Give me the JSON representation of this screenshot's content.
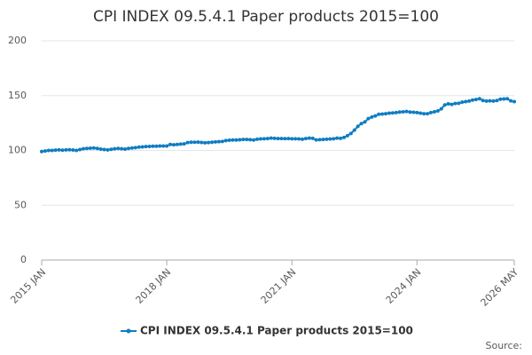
{
  "chart_data": {
    "type": "line",
    "title": "CPI INDEX 09.5.4.1 Paper products 2015=100",
    "source": "Source:",
    "categories": [
      "2015 JAN",
      null,
      null,
      null,
      null,
      null,
      null,
      null,
      null,
      null,
      null,
      null,
      null,
      null,
      null,
      null,
      null,
      null,
      null,
      null,
      null,
      null,
      null,
      null,
      null,
      null,
      null,
      null,
      null,
      null,
      null,
      null,
      null,
      null,
      null,
      null,
      "2018 JAN",
      null,
      null,
      null,
      null,
      null,
      null,
      null,
      null,
      null,
      null,
      null,
      null,
      null,
      null,
      null,
      null,
      null,
      null,
      null,
      null,
      null,
      null,
      null,
      null,
      null,
      null,
      null,
      null,
      null,
      null,
      null,
      null,
      null,
      null,
      null,
      "2021 JAN",
      null,
      null,
      null,
      null,
      null,
      null,
      null,
      null,
      null,
      null,
      null,
      null,
      null,
      null,
      null,
      null,
      null,
      null,
      null,
      null,
      null,
      null,
      null,
      null,
      null,
      null,
      null,
      null,
      null,
      null,
      null,
      null,
      null,
      null,
      null,
      "2024 JAN",
      null,
      null,
      null,
      null,
      null,
      null,
      null,
      null,
      null,
      null,
      null,
      null,
      null,
      null,
      null,
      null,
      null,
      null,
      null,
      null,
      null,
      null,
      null,
      null,
      null,
      null,
      null,
      "2026 MAY"
    ],
    "series": [
      {
        "name": "CPI INDEX 09.5.4.1 Paper products 2015=100",
        "color": "#0f7dc2",
        "values": [
          99,
          99.5,
          100,
          100,
          100.3,
          100.5,
          100.2,
          100.5,
          100.6,
          100.4,
          100,
          100.8,
          101.5,
          101.8,
          102,
          102.2,
          101.8,
          101.2,
          100.8,
          100.5,
          101,
          101.5,
          101.8,
          101.5,
          101.2,
          101.8,
          102.2,
          102.5,
          103,
          103.2,
          103.5,
          103.6,
          103.8,
          103.8,
          104,
          104,
          104,
          105.5,
          105.2,
          105.5,
          105.8,
          106,
          107.2,
          107.5,
          107.5,
          107.6,
          107.3,
          107,
          107.2,
          107.5,
          107.8,
          108,
          108.2,
          109,
          109.3,
          109.5,
          109.5,
          109.7,
          110,
          110,
          109.8,
          109.5,
          110.2,
          110.5,
          110.6,
          110.8,
          111.2,
          111,
          110.8,
          110.8,
          110.7,
          110.8,
          110.6,
          110.6,
          110.5,
          110.2,
          110.8,
          111.2,
          111,
          109.6,
          109.8,
          110,
          110.2,
          110.4,
          110.6,
          111.2,
          111,
          111.8,
          113.5,
          115.5,
          118.5,
          122,
          124.5,
          126,
          129,
          130.5,
          131.5,
          133,
          133.2,
          133.5,
          134,
          134.2,
          134.5,
          135,
          135.2,
          135.5,
          135,
          134.8,
          134.5,
          134,
          133.5,
          133.5,
          134.5,
          135.2,
          136,
          138,
          141.5,
          142.5,
          142,
          142.8,
          143,
          144,
          144.5,
          145,
          146,
          146.5,
          147.2,
          145.5,
          145,
          145.2,
          145,
          145.5,
          146.8,
          147,
          147.2,
          145.2,
          144.5
        ]
      }
    ],
    "ylim": [
      0,
      200
    ],
    "yticks": [
      0,
      50,
      100,
      150,
      200
    ],
    "grid": true
  }
}
